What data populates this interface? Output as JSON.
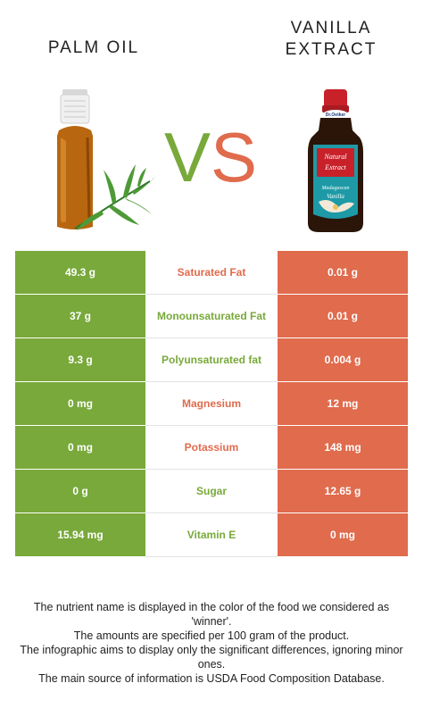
{
  "header": {
    "left_food": "PALM OIL",
    "right_food": "VANILLA\nEXTRACT",
    "vs_v": "V",
    "vs_s": "S"
  },
  "colors": {
    "winner_left": "#78a93a",
    "winner_right": "#e06b4d"
  },
  "rows": [
    {
      "left": "49.3 g",
      "nutrient": "Saturated Fat",
      "right": "0.01 g",
      "winner": "right"
    },
    {
      "left": "37 g",
      "nutrient": "Monounsaturated Fat",
      "right": "0.01 g",
      "winner": "left"
    },
    {
      "left": "9.3 g",
      "nutrient": "Polyunsaturated fat",
      "right": "0.004 g",
      "winner": "left"
    },
    {
      "left": "0 mg",
      "nutrient": "Magnesium",
      "right": "12 mg",
      "winner": "right"
    },
    {
      "left": "0 mg",
      "nutrient": "Potassium",
      "right": "148 mg",
      "winner": "right"
    },
    {
      "left": "0 g",
      "nutrient": "Sugar",
      "right": "12.65 g",
      "winner": "left"
    },
    {
      "left": "15.94 mg",
      "nutrient": "Vitamin E",
      "right": "0 mg",
      "winner": "left"
    }
  ],
  "footer": {
    "line1": "The nutrient name is displayed in the color of the food we considered as 'winner'.",
    "line2": "The amounts are specified per 100 gram of the product.",
    "line3": "The infographic aims to display only the significant differences, ignoring minor ones.",
    "line4": "The main source of information is USDA Food Composition Database."
  },
  "images": {
    "left_icon": "oil-bottle-with-herbs-icon",
    "right_icon": "vanilla-extract-bottle-icon",
    "label_text_1": "Dr.Oetker",
    "label_text_2": "Natural Extract",
    "label_text_3": "Madagascan Vanilla"
  }
}
